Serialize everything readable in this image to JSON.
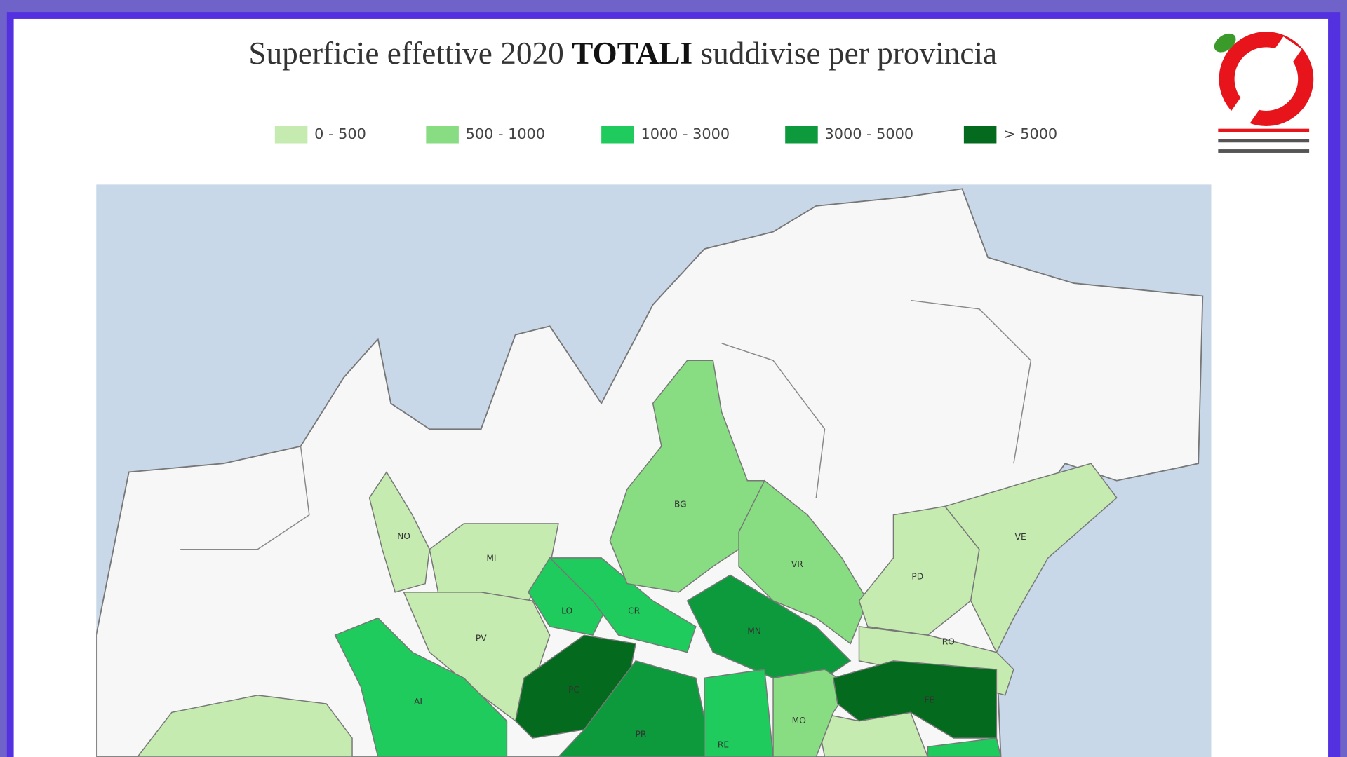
{
  "header": {
    "title_before": "Superficie effettive 2020",
    "title_bold": "TOTALI",
    "title_after": "suddivise per provincia"
  },
  "legend": [
    {
      "label": "0 - 500",
      "color": "#c6ebb0"
    },
    {
      "label": "500 - 1000",
      "color": "#88dc82"
    },
    {
      "label": "1000 - 3000",
      "color": "#1fcb5c"
    },
    {
      "label": "3000 - 5000",
      "color": "#0c9a3d"
    },
    {
      "label": "> 5000",
      "color": "#046a1e"
    }
  ],
  "provinces": [
    {
      "label": "NO",
      "color": "#c6ebb0"
    },
    {
      "label": "MI",
      "color": "#c6ebb0"
    },
    {
      "label": "LO",
      "color": "#1fcb5c"
    },
    {
      "label": "CR",
      "color": "#1fcb5c"
    },
    {
      "label": "BG",
      "color": "#88dc82"
    },
    {
      "label": "VR",
      "color": "#88dc82"
    },
    {
      "label": "MN",
      "color": "#0c9a3d"
    },
    {
      "label": "PV",
      "color": "#c6ebb0"
    },
    {
      "label": "AL",
      "color": "#1fcb5c"
    },
    {
      "label": "PC",
      "color": "#046a1e"
    },
    {
      "label": "PR",
      "color": "#0c9a3d"
    },
    {
      "label": "RE",
      "color": "#1fcb5c"
    },
    {
      "label": "MO",
      "color": "#88dc82"
    },
    {
      "label": "RO",
      "color": "#c6ebb0"
    },
    {
      "label": "FE",
      "color": "#046a1e"
    },
    {
      "label": "PD",
      "color": "#c6ebb0"
    },
    {
      "label": "VE",
      "color": "#c6ebb0"
    }
  ]
}
